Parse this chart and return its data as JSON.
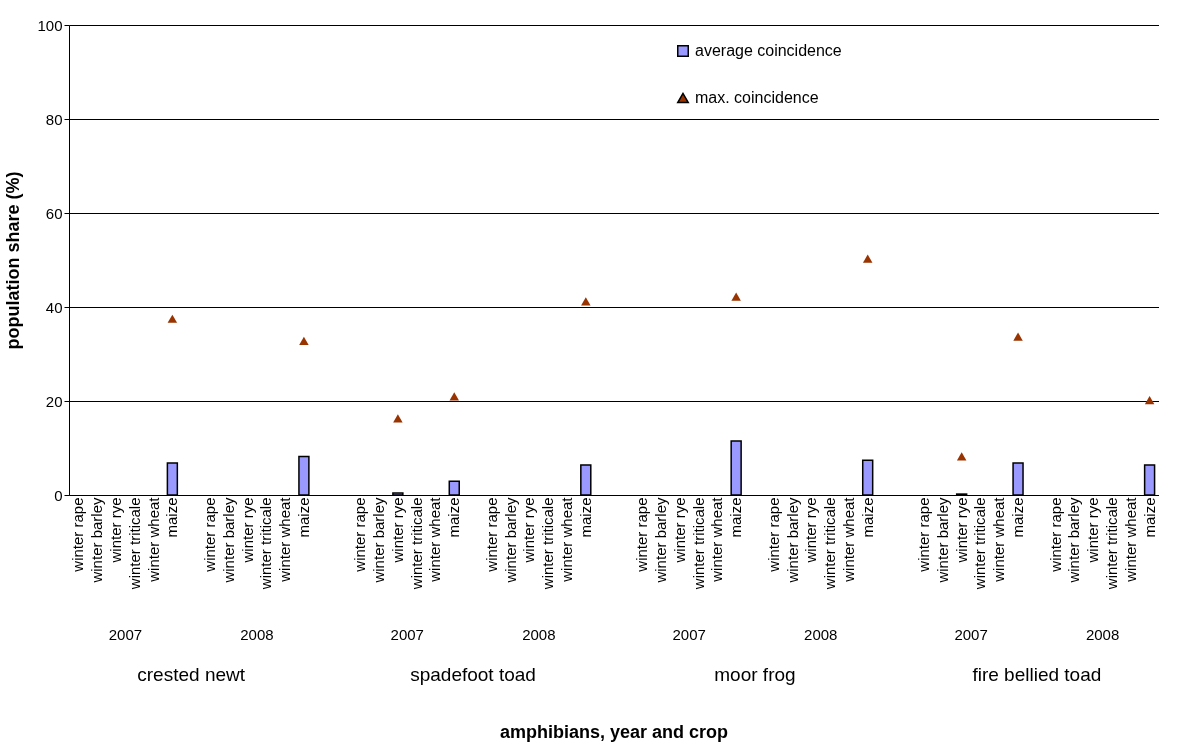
{
  "chart_data": {
    "type": "bar",
    "ylabel": "population share (%)",
    "categories": [
      "winter rape",
      "winter barley",
      "winter rye",
      "winter triticale",
      "winter wheat",
      "maize",
      null,
      "winter rape",
      "winter barley",
      "winter rye",
      "winter triticale",
      "winter wheat",
      "maize",
      null,
      null,
      "winter rape",
      "winter barley",
      "winter rye",
      "winter triticale",
      "winter wheat",
      "maize",
      null,
      "winter rape",
      "winter barley",
      "winter rye",
      "winter triticale",
      "winter wheat",
      "maize",
      null,
      null,
      "winter rape",
      "winter barley",
      "winter rye",
      "winter triticale",
      "winter wheat",
      "maize",
      null,
      "winter rape",
      "winter barley",
      "winter rye",
      "winter triticale",
      "winter wheat",
      "maize",
      null,
      null,
      "winter rape",
      "winter barley",
      "winter rye",
      "winter triticale",
      "winter wheat",
      "maize",
      null,
      "winter rape",
      "winter barley",
      "winter rye",
      "winter triticale",
      "winter wheat",
      "maize"
    ],
    "series": [
      {
        "name": "average coincidence",
        "color": "#9999ff",
        "values": [
          null,
          null,
          null,
          null,
          null,
          6.8,
          null,
          null,
          null,
          null,
          null,
          null,
          8.2,
          null,
          null,
          null,
          null,
          0.4,
          null,
          null,
          2.9,
          null,
          null,
          null,
          null,
          null,
          null,
          6.4,
          null,
          null,
          null,
          null,
          null,
          null,
          null,
          11.5,
          null,
          null,
          null,
          null,
          null,
          null,
          7.4,
          null,
          null,
          null,
          null,
          0.2,
          null,
          null,
          6.8,
          null,
          null,
          null,
          null,
          null,
          null,
          6.4
        ]
      },
      {
        "name": "max. coincidence",
        "type": "scatter",
        "marker": "triangle",
        "color": "#993300",
        "values": [
          null,
          null,
          null,
          null,
          null,
          37.5,
          null,
          null,
          null,
          null,
          null,
          null,
          32.8,
          null,
          null,
          null,
          null,
          16.3,
          null,
          null,
          21,
          null,
          null,
          null,
          null,
          null,
          null,
          41.2,
          null,
          null,
          null,
          null,
          null,
          null,
          null,
          42.2,
          null,
          null,
          null,
          null,
          null,
          null,
          50.3,
          null,
          null,
          null,
          null,
          8.2,
          null,
          null,
          33.7,
          null,
          null,
          null,
          null,
          null,
          null,
          20.2
        ]
      }
    ],
    "ylim": [
      0,
      100
    ],
    "yticks": [
      0,
      20,
      40,
      60,
      80,
      100
    ],
    "grid": "y",
    "legend": "top right",
    "annotations": [
      "2007",
      "2008",
      "2007",
      "2008",
      "2007",
      "2008",
      "2007",
      "2008",
      "crested newt",
      "spadefoot toad",
      "moor frog",
      "fire bellied toad",
      "amphibians, year and crop"
    ]
  }
}
